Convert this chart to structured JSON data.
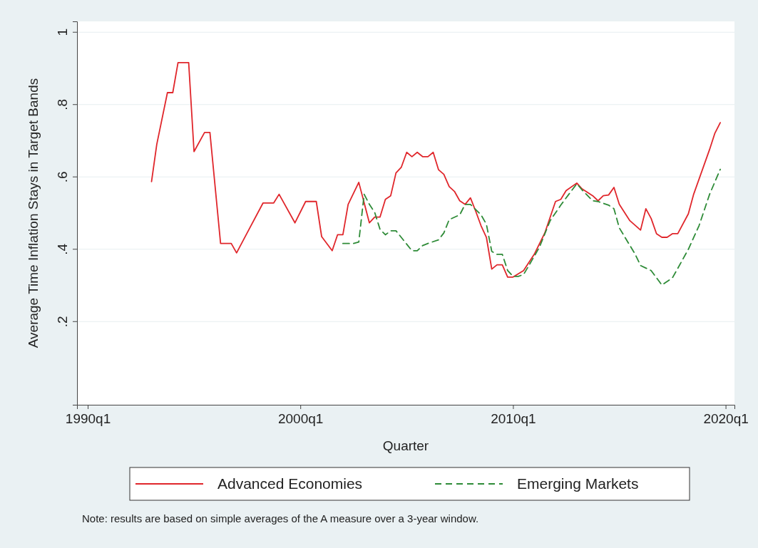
{
  "chart_data": {
    "type": "line",
    "xlabel": "Quarter",
    "ylabel": "Average Time Inflation Stays in Target Bands",
    "xlim": [
      "1989-07",
      "2020-06"
    ],
    "xticks": [
      {
        "value": "1990-01",
        "label": "1990q1"
      },
      {
        "value": "2000-01",
        "label": "2000q1"
      },
      {
        "value": "2010-01",
        "label": "2010q1"
      },
      {
        "value": "2020-01",
        "label": "2020q1"
      }
    ],
    "ylim": [
      -0.03,
      1.03
    ],
    "yticks": [
      {
        "value": 0.2,
        "label": ".2"
      },
      {
        "value": 0.4,
        "label": ".4"
      },
      {
        "value": 0.6,
        "label": ".6"
      },
      {
        "value": 0.8,
        "label": ".8"
      },
      1
    ],
    "grid": "y",
    "legend": "bottom",
    "marker": "none",
    "annotations": [
      "Note: results are based on simple averages of the A measure over a 3-year window."
    ],
    "series": [
      {
        "name": "Advanced Economies",
        "color": "#e0262b",
        "line_style": "solid",
        "x": [
          "1993-01",
          "1993-04",
          "1993-10",
          "1994-01",
          "1994-04",
          "1994-10",
          "1995-01",
          "1995-07",
          "1995-10",
          "1996-04",
          "1996-10",
          "1997-01",
          "1997-07",
          "1998-04",
          "1998-10",
          "1999-01",
          "1999-10",
          "2000-04",
          "2000-10",
          "2001-01",
          "2001-07",
          "2001-10",
          "2002-01",
          "2002-04",
          "2002-10",
          "2003-04",
          "2003-07",
          "2003-10",
          "2004-01",
          "2004-04",
          "2004-07",
          "2004-10",
          "2005-01",
          "2005-04",
          "2005-07",
          "2005-10",
          "2006-01",
          "2006-04",
          "2006-07",
          "2006-10",
          "2007-01",
          "2007-04",
          "2007-07",
          "2007-10",
          "2008-01",
          "2008-04",
          "2008-07",
          "2008-10",
          "2009-01",
          "2009-04",
          "2009-07",
          "2009-10",
          "2010-01",
          "2010-07",
          "2011-01",
          "2011-07",
          "2012-01",
          "2012-04",
          "2012-07",
          "2013-01",
          "2013-04",
          "2013-10",
          "2014-01",
          "2014-04",
          "2014-07",
          "2014-10",
          "2015-01",
          "2015-07",
          "2016-01",
          "2016-04",
          "2016-07",
          "2016-10",
          "2017-01",
          "2017-04",
          "2017-07",
          "2017-10",
          "2018-04",
          "2018-07",
          "2019-04",
          "2019-07",
          "2019-10"
        ],
        "values": [
          0.587,
          0.69,
          0.833,
          0.833,
          0.916,
          0.916,
          0.67,
          0.723,
          0.723,
          0.416,
          0.416,
          0.39,
          0.445,
          0.528,
          0.528,
          0.552,
          0.473,
          0.532,
          0.532,
          0.435,
          0.396,
          0.44,
          0.44,
          0.524,
          0.585,
          0.473,
          0.489,
          0.489,
          0.538,
          0.548,
          0.611,
          0.627,
          0.668,
          0.656,
          0.668,
          0.656,
          0.656,
          0.668,
          0.62,
          0.607,
          0.573,
          0.56,
          0.534,
          0.524,
          0.542,
          0.505,
          0.465,
          0.433,
          0.345,
          0.357,
          0.357,
          0.323,
          0.323,
          0.341,
          0.386,
          0.445,
          0.532,
          0.538,
          0.562,
          0.583,
          0.567,
          0.548,
          0.534,
          0.548,
          0.55,
          0.571,
          0.524,
          0.479,
          0.453,
          0.512,
          0.485,
          0.443,
          0.433,
          0.433,
          0.443,
          0.443,
          0.498,
          0.552,
          0.676,
          0.721,
          0.75
        ]
      },
      {
        "name": "Emerging Markets",
        "color": "#2e8b37",
        "line_style": "dashed",
        "x": [
          "2002-01",
          "2002-07",
          "2002-10",
          "2003-01",
          "2003-04",
          "2003-07",
          "2003-10",
          "2004-01",
          "2004-04",
          "2004-07",
          "2005-01",
          "2005-04",
          "2005-07",
          "2005-10",
          "2006-01",
          "2006-07",
          "2006-10",
          "2007-01",
          "2007-07",
          "2007-10",
          "2008-01",
          "2008-07",
          "2008-10",
          "2009-01",
          "2009-04",
          "2009-07",
          "2009-10",
          "2010-01",
          "2010-04",
          "2010-07",
          "2010-10",
          "2011-04",
          "2011-10",
          "2012-04",
          "2012-07",
          "2013-01",
          "2013-04",
          "2013-10",
          "2014-01",
          "2014-07",
          "2014-10",
          "2015-01",
          "2015-10",
          "2016-01",
          "2016-07",
          "2017-01",
          "2017-07",
          "2017-10",
          "2018-04",
          "2018-10",
          "2019-04",
          "2019-10"
        ],
        "values": [
          0.416,
          0.416,
          0.42,
          0.552,
          0.524,
          0.502,
          0.455,
          0.44,
          0.451,
          0.451,
          0.414,
          0.396,
          0.396,
          0.41,
          0.416,
          0.426,
          0.445,
          0.482,
          0.495,
          0.524,
          0.524,
          0.495,
          0.469,
          0.394,
          0.386,
          0.386,
          0.341,
          0.325,
          0.325,
          0.33,
          0.355,
          0.406,
          0.479,
          0.522,
          0.542,
          0.581,
          0.564,
          0.534,
          0.532,
          0.522,
          0.512,
          0.459,
          0.386,
          0.355,
          0.341,
          0.301,
          0.321,
          0.347,
          0.4,
          0.465,
          0.552,
          0.621
        ]
      }
    ]
  }
}
